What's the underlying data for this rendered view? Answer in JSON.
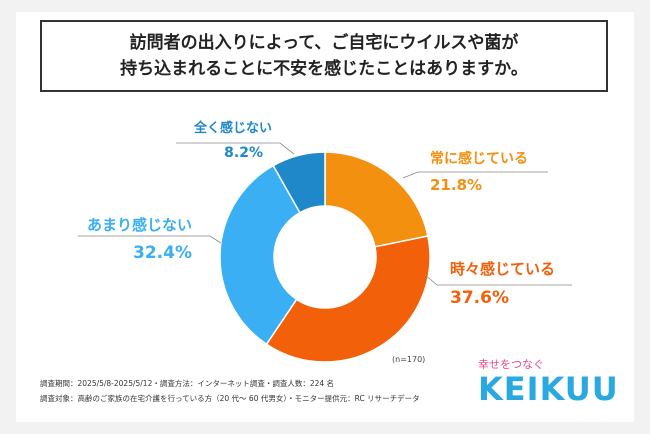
{
  "title": {
    "line1": "訪問者の出入りによって、ご自宅にウイルスや菌が",
    "line2": "持ち込まれることに不安を感じたことはありますか。"
  },
  "chart_data": {
    "type": "pie",
    "categories": [
      "常に感じている",
      "時々感じている",
      "あまり感じない",
      "全く感じない"
    ],
    "values": [
      21.8,
      37.6,
      32.4,
      8.2
    ],
    "value_labels": [
      "21.8%",
      "37.6%",
      "32.4%",
      "8.2%"
    ],
    "colors": [
      "#f39010",
      "#f2600a",
      "#3aaff3",
      "#1e88c8"
    ],
    "note": "(n=170)"
  },
  "footer": {
    "line1": "調査期間：2025/5/8-2025/5/12・調査方法：インターネット調査・調査人数：224 名",
    "line2": "調査対象：高齢のご家族の在宅介護を行っている方（20 代～ 60 代男女）・モニター提供元：RC リサーチデータ"
  },
  "brand": {
    "tagline": "幸せをつなぐ",
    "name": "KEIKUU"
  }
}
